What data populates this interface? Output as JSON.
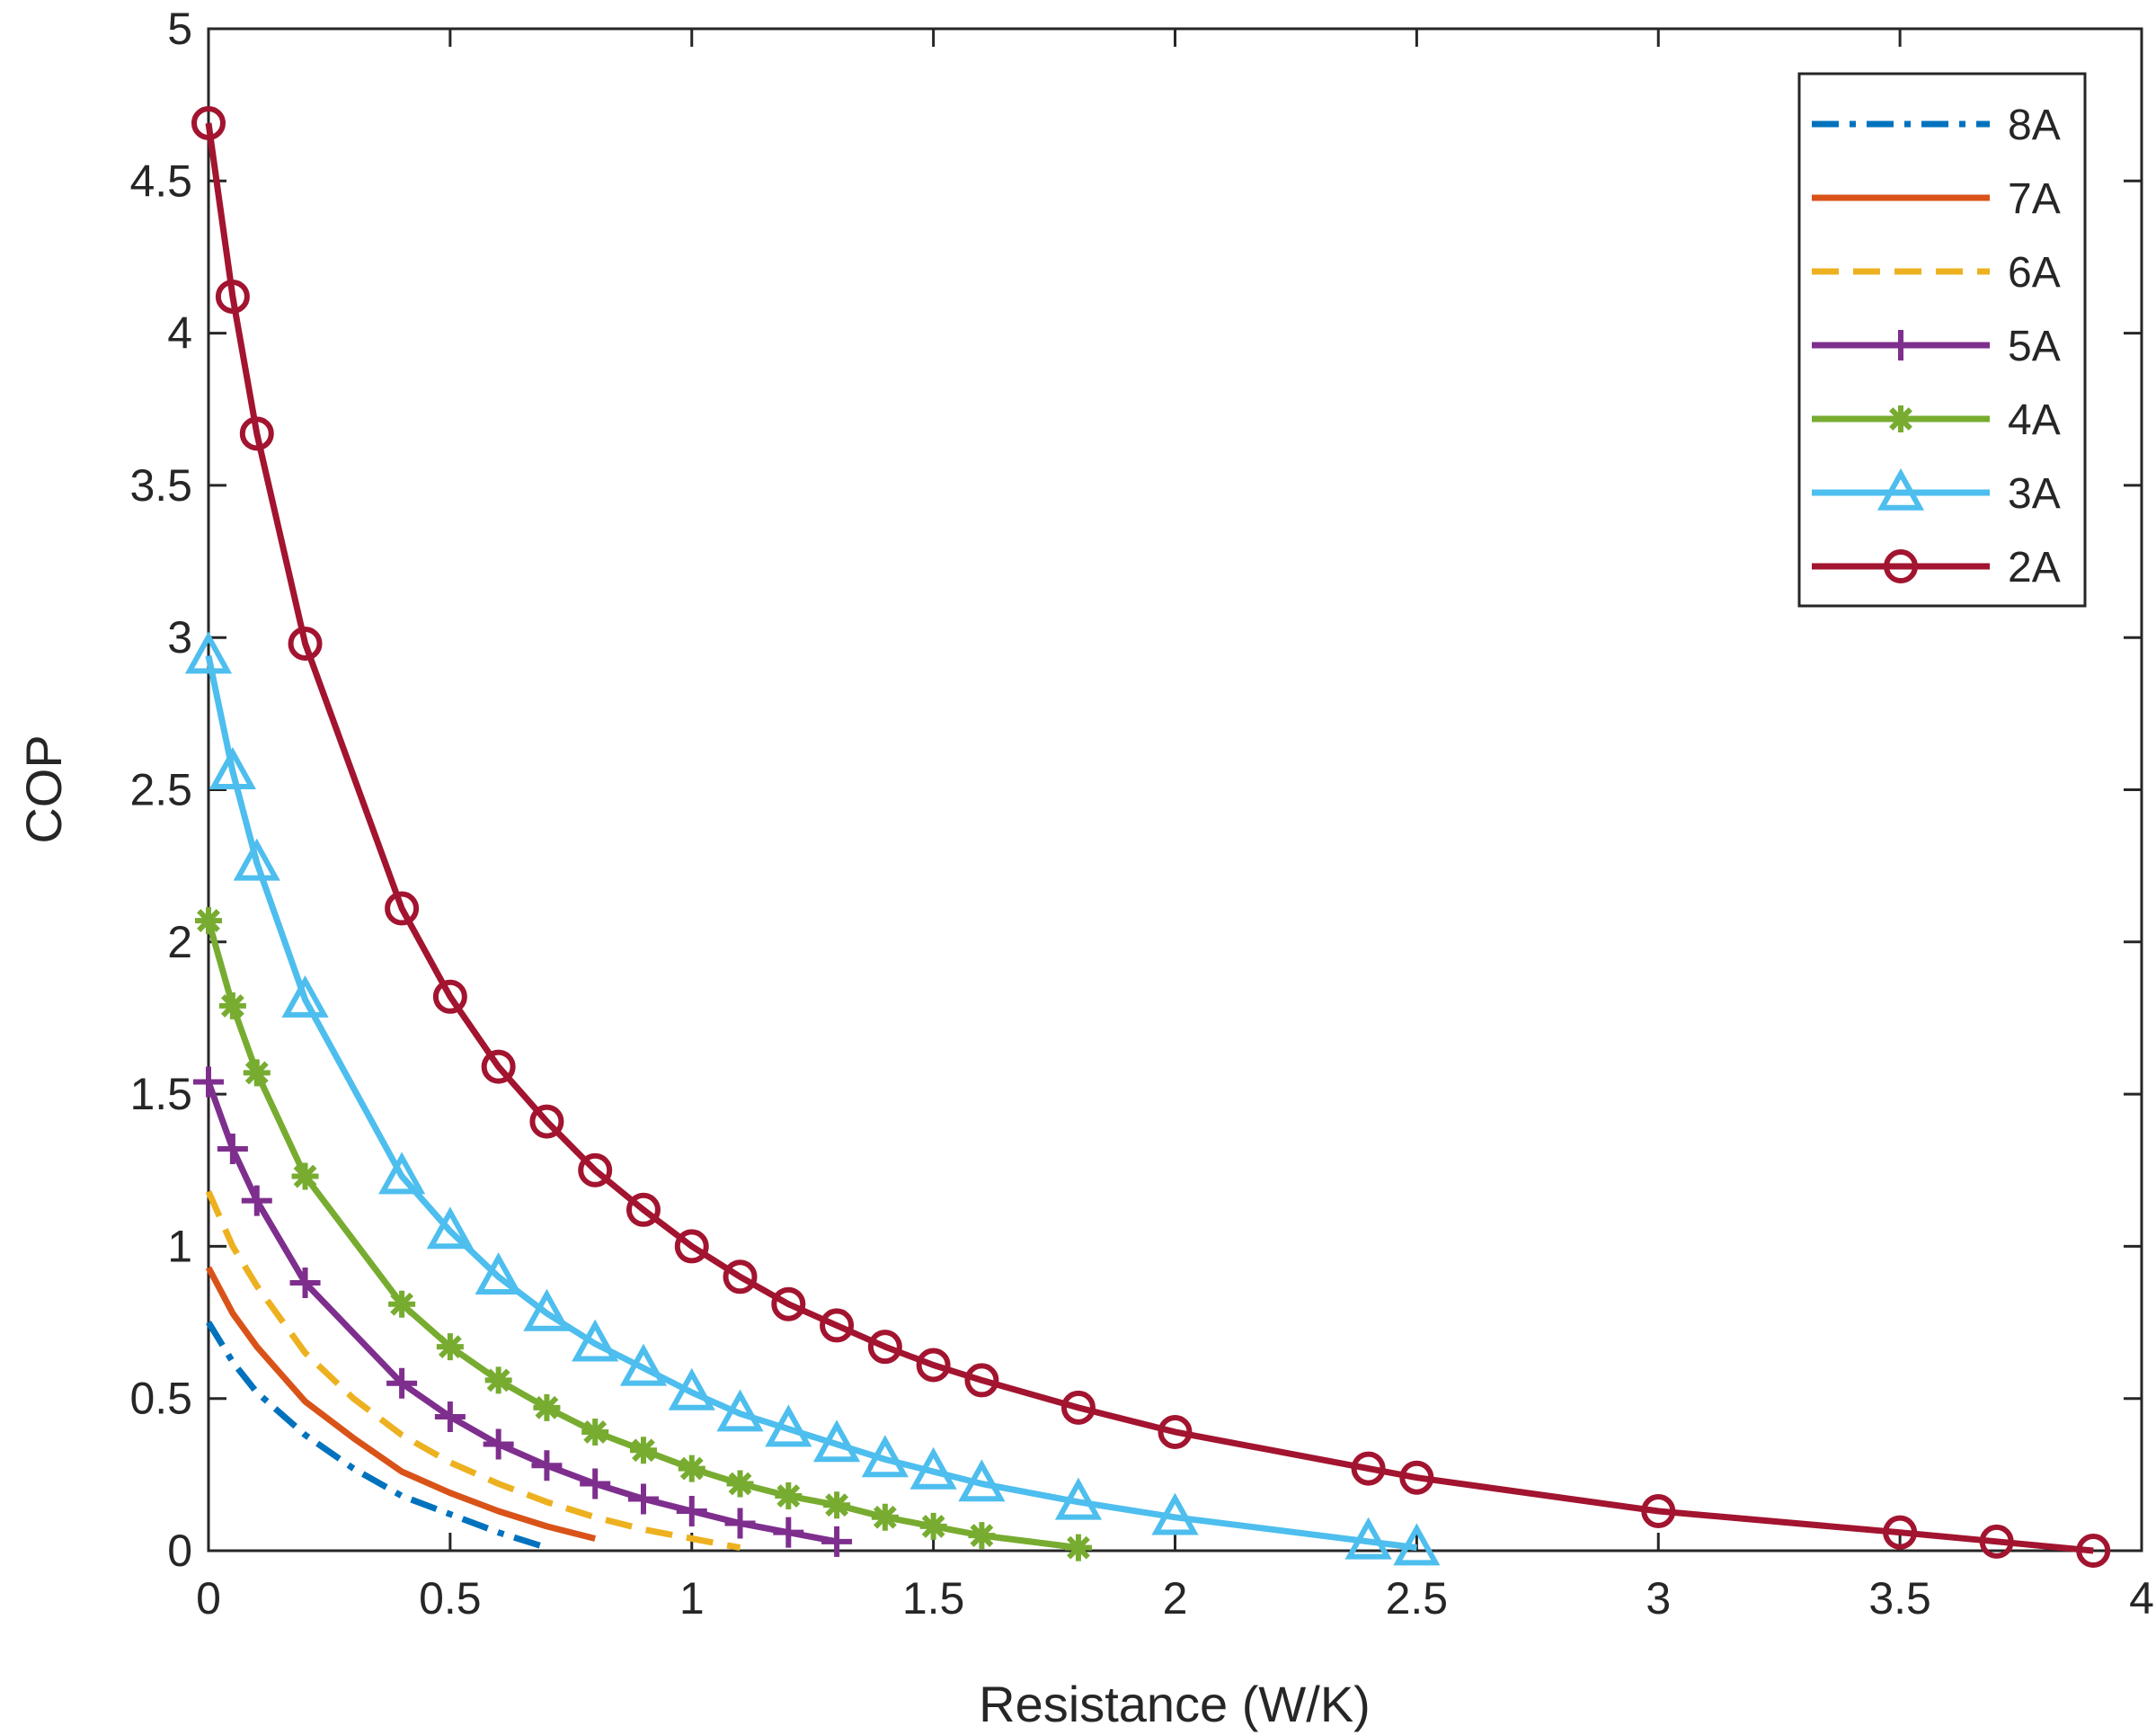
{
  "chart_data": {
    "type": "line",
    "title": "",
    "xlabel": "Resistance (W/K)",
    "ylabel": "COP",
    "xlim": [
      0,
      4
    ],
    "ylim": [
      0,
      5
    ],
    "xticks": [
      0,
      0.5,
      1,
      1.5,
      2,
      2.5,
      3,
      3.5,
      4
    ],
    "yticks": [
      0,
      0.5,
      1,
      1.5,
      2,
      2.5,
      3,
      3.5,
      4,
      4.5,
      5
    ],
    "xtick_labels": [
      "0",
      "0.5",
      "1",
      "1.5",
      "2",
      "2.5",
      "3",
      "3.5",
      "4"
    ],
    "ytick_labels": [
      "0",
      "0.5",
      "1",
      "1.5",
      "2",
      "2.5",
      "3",
      "3.5",
      "4",
      "4.5",
      "5"
    ],
    "grid": false,
    "legend_position": "top-right",
    "series": [
      {
        "name": "8A",
        "color": "#0072BD",
        "line_style": "dashdot",
        "marker": "none",
        "x": [
          0,
          0.05,
          0.1,
          0.2,
          0.3,
          0.4,
          0.5,
          0.6,
          0.7
        ],
        "y": [
          0.75,
          0.62,
          0.52,
          0.38,
          0.27,
          0.18,
          0.12,
          0.06,
          0.01
        ]
      },
      {
        "name": "7A",
        "color": "#D95319",
        "line_style": "solid",
        "marker": "none",
        "x": [
          0,
          0.05,
          0.1,
          0.2,
          0.3,
          0.4,
          0.5,
          0.6,
          0.7,
          0.8
        ],
        "y": [
          0.93,
          0.78,
          0.67,
          0.49,
          0.37,
          0.26,
          0.19,
          0.13,
          0.08,
          0.04
        ]
      },
      {
        "name": "6A",
        "color": "#EDB120",
        "line_style": "dashed",
        "marker": "none",
        "x": [
          0,
          0.05,
          0.1,
          0.2,
          0.3,
          0.4,
          0.5,
          0.6,
          0.7,
          0.8,
          0.9,
          1.0,
          1.1
        ],
        "y": [
          1.18,
          1.0,
          0.87,
          0.65,
          0.5,
          0.38,
          0.29,
          0.22,
          0.16,
          0.11,
          0.07,
          0.04,
          0.01
        ]
      },
      {
        "name": "5A",
        "color": "#7E2F8E",
        "line_style": "solid",
        "marker": "plus",
        "x": [
          0,
          0.05,
          0.1,
          0.2,
          0.4,
          0.5,
          0.6,
          0.7,
          0.8,
          0.9,
          1.0,
          1.1,
          1.2,
          1.3
        ],
        "y": [
          1.54,
          1.32,
          1.15,
          0.88,
          0.55,
          0.44,
          0.35,
          0.28,
          0.22,
          0.17,
          0.13,
          0.09,
          0.06,
          0.03
        ]
      },
      {
        "name": "4A",
        "color": "#77AC30",
        "line_style": "solid",
        "marker": "asterisk",
        "x": [
          0,
          0.05,
          0.1,
          0.2,
          0.4,
          0.5,
          0.6,
          0.7,
          0.8,
          0.9,
          1.0,
          1.1,
          1.2,
          1.3,
          1.4,
          1.5,
          1.6,
          1.8
        ],
        "y": [
          2.07,
          1.79,
          1.57,
          1.23,
          0.81,
          0.67,
          0.56,
          0.47,
          0.39,
          0.33,
          0.27,
          0.22,
          0.18,
          0.15,
          0.11,
          0.08,
          0.05,
          0.01
        ]
      },
      {
        "name": "3A",
        "color": "#4DBEEE",
        "line_style": "solid",
        "marker": "triangle",
        "x": [
          0,
          0.05,
          0.1,
          0.2,
          0.4,
          0.5,
          0.6,
          0.7,
          0.8,
          0.9,
          1.0,
          1.1,
          1.2,
          1.3,
          1.4,
          1.5,
          1.6,
          1.8,
          2.0,
          2.4,
          2.5
        ],
        "y": [
          2.94,
          2.56,
          2.26,
          1.81,
          1.23,
          1.05,
          0.9,
          0.78,
          0.68,
          0.6,
          0.52,
          0.45,
          0.4,
          0.35,
          0.3,
          0.26,
          0.22,
          0.16,
          0.11,
          0.03,
          0.01
        ]
      },
      {
        "name": "2A",
        "color": "#A2142F",
        "line_style": "solid",
        "marker": "circle",
        "x": [
          0,
          0.05,
          0.1,
          0.2,
          0.4,
          0.5,
          0.6,
          0.7,
          0.8,
          0.9,
          1.0,
          1.1,
          1.2,
          1.3,
          1.4,
          1.5,
          1.6,
          1.8,
          2.0,
          2.4,
          2.5,
          3.0,
          3.5,
          3.7,
          3.9
        ],
        "y": [
          4.69,
          4.12,
          3.67,
          2.98,
          2.11,
          1.82,
          1.59,
          1.41,
          1.25,
          1.12,
          1.0,
          0.9,
          0.81,
          0.74,
          0.67,
          0.61,
          0.56,
          0.47,
          0.39,
          0.27,
          0.24,
          0.13,
          0.06,
          0.03,
          0.0
        ]
      }
    ]
  }
}
